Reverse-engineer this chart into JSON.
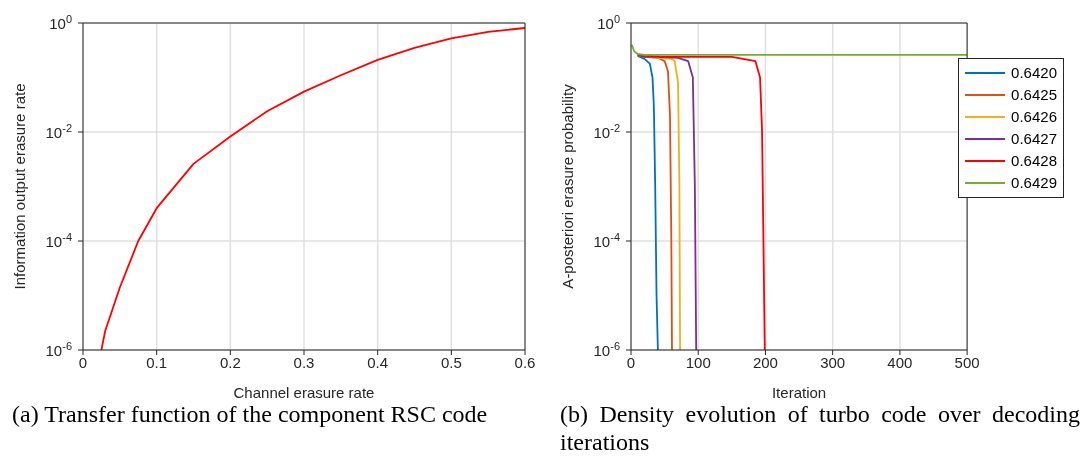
{
  "chart_data": [
    {
      "type": "line",
      "title": "(a) Transfer function of the component RSC code",
      "xlabel": "Channel erasure rate",
      "ylabel": "Information output erasure rate",
      "log": "y",
      "grid": true,
      "legend": false,
      "xlim": [
        0,
        0.6
      ],
      "xticks": [
        0,
        0.1,
        0.2,
        0.3,
        0.4,
        0.5,
        0.6
      ],
      "ylim": [
        1e-06,
        1
      ],
      "yticks": [
        {
          "value": 1e-06,
          "label": "10$^{-6}$"
        },
        {
          "value": 0.0001,
          "label": "10$^{-4}$"
        },
        {
          "value": 0.01,
          "label": "10$^{-2}$"
        },
        {
          "value": 1,
          "label": "10$^{0}$"
        }
      ],
      "series": [
        {
          "color": "#ff0000",
          "x": [
            0.025,
            0.03,
            0.05,
            0.075,
            0.1,
            0.15,
            0.2,
            0.25,
            0.3,
            0.35,
            0.4,
            0.45,
            0.5,
            0.55,
            0.6
          ],
          "values": [
            1e-06,
            2.2e-06,
            1.4e-05,
            0.0001,
            0.0004,
            0.0026,
            0.0083,
            0.024,
            0.055,
            0.11,
            0.21,
            0.35,
            0.52,
            0.69,
            0.81
          ]
        }
      ]
    },
    {
      "type": "line",
      "title": "(b) Density evolution of turbo code over decoding iterations",
      "xlabel": "Iteration",
      "ylabel": "A-posteriori erasure probability",
      "log": "y",
      "grid": true,
      "legend": "top right",
      "xlim": [
        0,
        500
      ],
      "xticks": [
        0,
        100,
        200,
        300,
        400,
        500
      ],
      "ylim": [
        1e-06,
        1
      ],
      "yticks": [
        {
          "value": 1e-06,
          "label": "10$^{-6}$"
        },
        {
          "value": 0.0001,
          "label": "10$^{-4}$"
        },
        {
          "value": 0.01,
          "label": "10$^{-2}$"
        },
        {
          "value": 1,
          "label": "10$^{0}$"
        }
      ],
      "series": [
        {
          "name": "0.6420",
          "color": "#0072bd",
          "x": [
            10,
            20,
            28,
            32,
            34,
            36,
            38,
            40
          ],
          "values": [
            0.25,
            0.22,
            0.18,
            0.1,
            0.03,
            0.001,
            1e-05,
            1e-06
          ]
        },
        {
          "name": "0.6425",
          "color": "#d95319",
          "x": [
            10,
            20,
            40,
            50,
            55,
            58,
            60,
            61
          ],
          "values": [
            0.26,
            0.24,
            0.23,
            0.2,
            0.13,
            0.02,
            0.0001,
            1e-06
          ]
        },
        {
          "name": "0.6426",
          "color": "#edb120",
          "x": [
            10,
            20,
            40,
            60,
            65,
            70,
            72,
            73
          ],
          "values": [
            0.26,
            0.24,
            0.23,
            0.22,
            0.2,
            0.08,
            0.001,
            1e-06
          ]
        },
        {
          "name": "0.6427",
          "color": "#7e2f8e",
          "x": [
            10,
            20,
            40,
            70,
            85,
            92,
            95,
            97
          ],
          "values": [
            0.26,
            0.24,
            0.24,
            0.23,
            0.2,
            0.1,
            0.001,
            1e-06
          ]
        },
        {
          "name": "0.6428",
          "color": "#ff0000",
          "x": [
            10,
            20,
            50,
            100,
            150,
            185,
            192,
            195,
            197,
            199
          ],
          "values": [
            0.26,
            0.25,
            0.24,
            0.24,
            0.24,
            0.2,
            0.1,
            0.01,
            0.0001,
            1e-06
          ]
        },
        {
          "name": "0.6429",
          "color": "#77ac30",
          "x": [
            1,
            5,
            10,
            20,
            50,
            100,
            200,
            300,
            400,
            500
          ],
          "values": [
            0.4,
            0.3,
            0.27,
            0.26,
            0.26,
            0.26,
            0.26,
            0.26,
            0.26,
            0.26
          ]
        }
      ]
    }
  ]
}
